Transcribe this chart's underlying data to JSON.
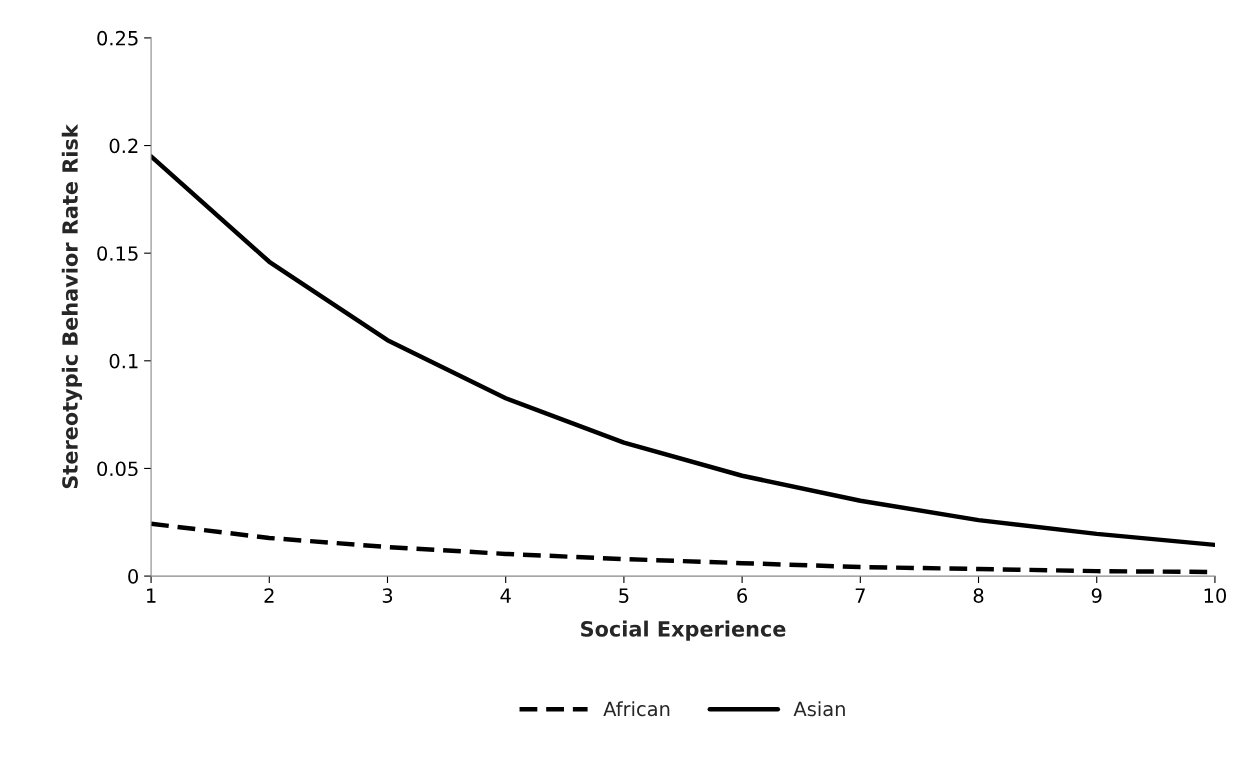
{
  "chart_data": {
    "type": "line",
    "xlabel": "Social Experience",
    "ylabel": "Stereotypic Behavior Rate Risk",
    "x": [
      1,
      2,
      3,
      4,
      5,
      6,
      7,
      8,
      9,
      10
    ],
    "xlim": [
      1,
      10
    ],
    "xticks": [
      1,
      2,
      3,
      4,
      5,
      6,
      7,
      8,
      9,
      10
    ],
    "ylim": [
      0,
      0.25
    ],
    "yticks": [
      {
        "value": 0,
        "label": "0"
      },
      0.05,
      0.1,
      0.15,
      0.2,
      0.25
    ],
    "grid": false,
    "legend": "bottom",
    "marker": "none",
    "series": [
      {
        "name": "African",
        "color": "#000000",
        "line_style": "dashed",
        "values": [
          0.0243,
          0.0177,
          0.0135,
          0.0103,
          0.0079,
          0.006,
          0.0042,
          0.0033,
          0.0023,
          0.0019
        ]
      },
      {
        "name": "Asian",
        "color": "#000000",
        "line_style": "solid",
        "values": [
          0.195,
          0.146,
          0.1096,
          0.0826,
          0.062,
          0.0466,
          0.035,
          0.026,
          0.0196,
          0.0145
        ]
      }
    ]
  }
}
